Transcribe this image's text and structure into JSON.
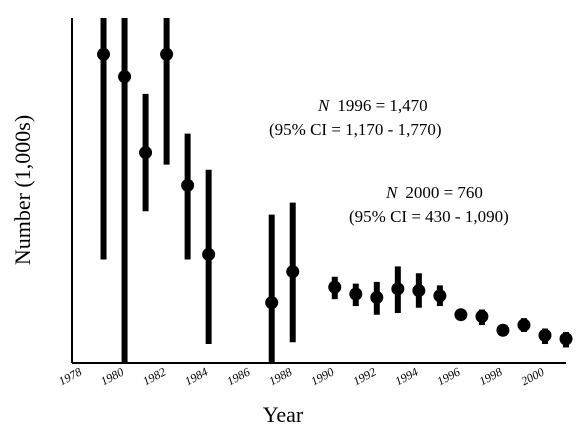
{
  "chart_data": {
    "type": "scatter",
    "style": "points-with-error-bars",
    "title": "",
    "xlabel": "Year",
    "ylabel": "Number (1,000s)",
    "xlim": [
      1978,
      2001.5
    ],
    "ylim": [
      0,
      2000
    ],
    "x_ticks": [
      1978,
      1980,
      1982,
      1984,
      1986,
      1988,
      1990,
      1992,
      1994,
      1996,
      1998,
      2000
    ],
    "x_tick_labels": [
      "1978",
      "1980",
      "1982",
      "1984",
      "1986",
      "1988",
      "1990",
      "1992",
      "1994",
      "1996",
      "1998",
      "2000"
    ],
    "y_ticks_shown": false,
    "grid": false,
    "color": "#000000",
    "series": [
      {
        "points": [
          {
            "x": 1979.5,
            "y": 1790,
            "low": 600,
            "high": 2000
          },
          {
            "x": 1980.5,
            "y": 1660,
            "low": 0,
            "high": 2000
          },
          {
            "x": 1981.5,
            "y": 1220,
            "low": 880,
            "high": 1560
          },
          {
            "x": 1982.5,
            "y": 1790,
            "low": 1150,
            "high": 2000
          },
          {
            "x": 1983.5,
            "y": 1030,
            "low": 600,
            "high": 1330
          },
          {
            "x": 1984.5,
            "y": 630,
            "low": 110,
            "high": 1120
          },
          {
            "x": 1987.5,
            "y": 350,
            "low": 0,
            "high": 860
          },
          {
            "x": 1988.5,
            "y": 530,
            "low": 120,
            "high": 930
          },
          {
            "x": 1990.5,
            "y": 440,
            "low": 370,
            "high": 500
          },
          {
            "x": 1991.5,
            "y": 400,
            "low": 330,
            "high": 460
          },
          {
            "x": 1992.5,
            "y": 380,
            "low": 280,
            "high": 470
          },
          {
            "x": 1993.5,
            "y": 430,
            "low": 290,
            "high": 560
          },
          {
            "x": 1994.5,
            "y": 420,
            "low": 320,
            "high": 520
          },
          {
            "x": 1995.5,
            "y": 390,
            "low": 330,
            "high": 450
          },
          {
            "x": 1996.5,
            "y": 280,
            "low": 250,
            "high": 310
          },
          {
            "x": 1997.5,
            "y": 270,
            "low": 220,
            "high": 310
          },
          {
            "x": 1998.5,
            "y": 190,
            "low": 170,
            "high": 210
          },
          {
            "x": 1999.5,
            "y": 220,
            "low": 180,
            "high": 260
          },
          {
            "x": 2000.5,
            "y": 160,
            "low": 110,
            "high": 200
          },
          {
            "x": 2001.5,
            "y": 140,
            "low": 90,
            "high": 180
          }
        ]
      }
    ],
    "annotations": [
      {
        "id": "ann1996",
        "line1_symbol": "N",
        "line1_text": "1996 = 1,470",
        "line2_text": "(95% CI = 1,170 - 1,770)"
      },
      {
        "id": "ann2000",
        "line1_symbol": "N",
        "line1_text": "2000 = 760",
        "line2_text": "(95% CI = 430 - 1,090)"
      }
    ]
  }
}
